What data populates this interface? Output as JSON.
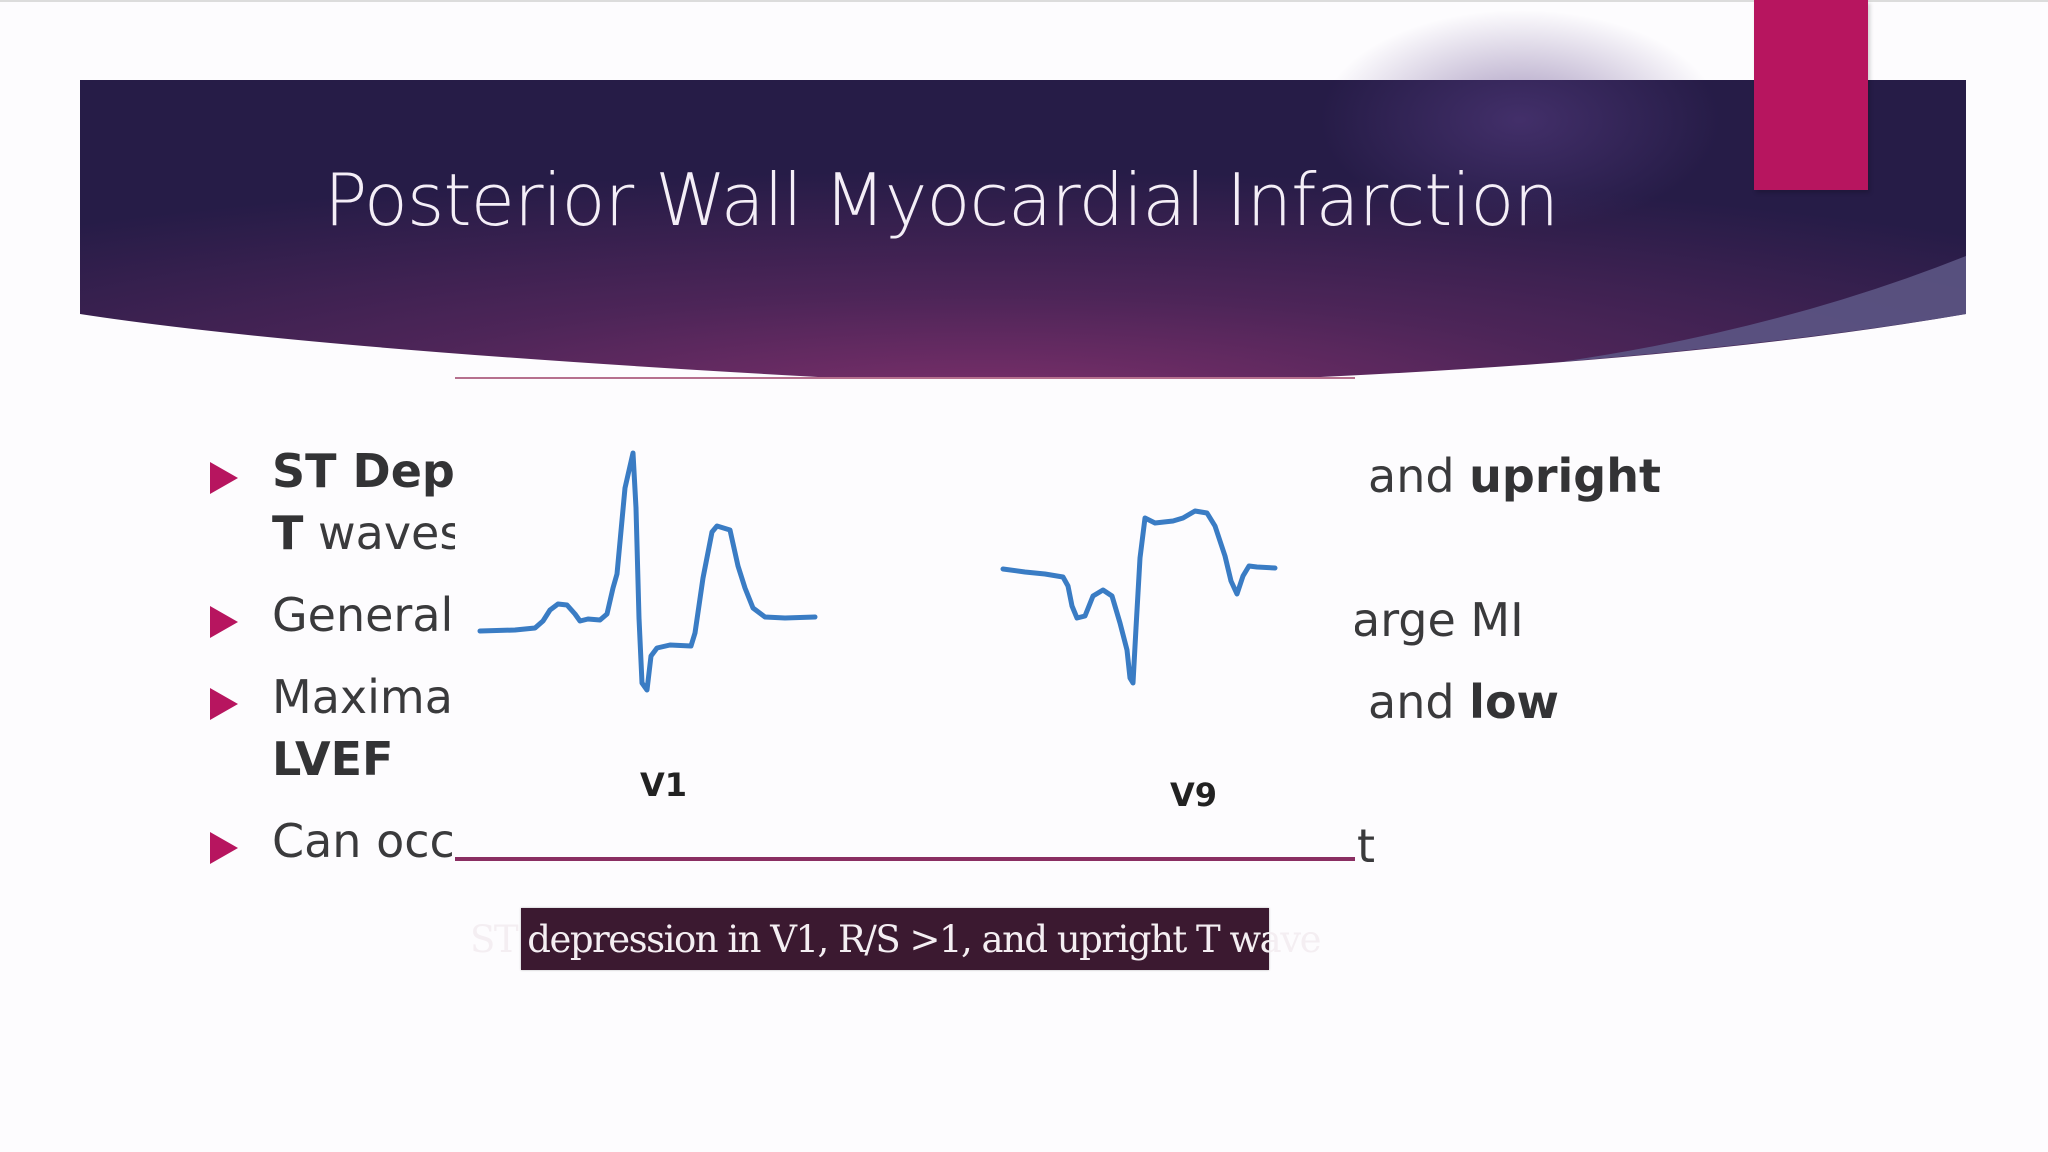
{
  "slide": {
    "title": "Posterior Wall Myocardial Infarction",
    "accent_color": "#b7155f",
    "banner_colors": [
      "#2a1d4b",
      "#6b2a63"
    ]
  },
  "bullets": [
    {
      "pre_bold": "ST Depr",
      "pre": "",
      "post": "and ",
      "post_bold": "upright",
      "line2_bold": "T",
      "line2": " waves"
    },
    {
      "pre": "Generall",
      "post": "arge MI"
    },
    {
      "pre": "Maximal",
      "post": "and ",
      "post_bold": "low",
      "line2_bold": "LVEF"
    },
    {
      "pre": "Can occu",
      "post": "t"
    }
  ],
  "figure": {
    "lead_left": "V1",
    "lead_right": "V9",
    "trace_color": "#3a7cc4",
    "caption": "ST depression in V1, R/S >1, and upright T wave"
  }
}
